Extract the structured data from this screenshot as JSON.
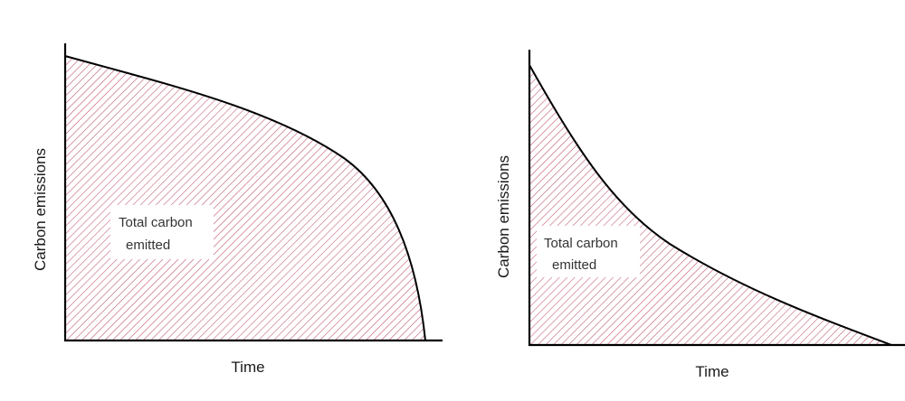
{
  "chart_data": [
    {
      "type": "area",
      "xlabel": "Time",
      "ylabel": "Carbon emissions",
      "annotation": [
        "Total carbon",
        "emitted"
      ],
      "fill_color": "#c0506a",
      "line_color": "#000000"
    },
    {
      "type": "area",
      "xlabel": "Time",
      "ylabel": "Carbon emissions",
      "annotation": [
        "Total carbon",
        "emitted"
      ],
      "fill_color": "#c0506a",
      "line_color": "#000000"
    }
  ]
}
